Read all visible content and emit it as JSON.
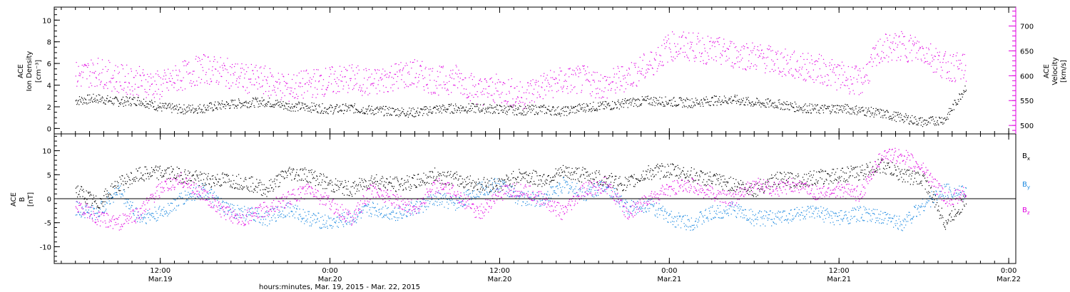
{
  "chart_data": [
    {
      "type": "scatter",
      "panel": "ace-density-velocity",
      "left_axis": {
        "label_lines": [
          "ACE",
          "Ion Density"
        ],
        "units": "[cm⁻³]",
        "ylim": [
          -0.5,
          11.2
        ],
        "ticks": [
          0,
          2,
          4,
          6,
          8,
          10
        ],
        "color": "#000000"
      },
      "right_axis": {
        "label_lines": [
          "ACE",
          "Velocity"
        ],
        "units": "[km/s]",
        "ylim": [
          483,
          738
        ],
        "ticks": [
          500,
          550,
          600,
          650,
          700
        ],
        "color": "#e000e0"
      },
      "series": [
        {
          "name": "",
          "axis": "left",
          "color": "#000000",
          "x": [
            0,
            3,
            6,
            9,
            12,
            15,
            18,
            21,
            24,
            27,
            30,
            33,
            36,
            39,
            42,
            45,
            48,
            51,
            54,
            57,
            60,
            63,
            66,
            69,
            72,
            75,
            78,
            81,
            84,
            87,
            90,
            93,
            96,
            99,
            102,
            105,
            108,
            111,
            114,
            117,
            120,
            123,
            126
          ],
          "values": [
            2.6,
            2.8,
            2.5,
            2.6,
            2.0,
            1.8,
            1.9,
            2.2,
            2.4,
            2.5,
            2.1,
            2.0,
            1.8,
            1.9,
            1.7,
            1.6,
            1.5,
            1.8,
            1.9,
            1.9,
            1.8,
            1.7,
            1.8,
            1.6,
            2.0,
            2.1,
            2.4,
            2.6,
            2.5,
            2.4,
            2.6,
            2.7,
            2.4,
            2.3,
            2.0,
            1.8,
            1.9,
            1.7,
            1.4,
            1.0,
            0.6,
            0.9,
            4.0
          ]
        },
        {
          "name": "",
          "axis": "right",
          "color": "#e000e0",
          "x": [
            0,
            3,
            6,
            9,
            12,
            15,
            18,
            21,
            24,
            27,
            30,
            33,
            36,
            39,
            42,
            45,
            48,
            51,
            54,
            57,
            60,
            63,
            66,
            69,
            72,
            75,
            78,
            81,
            84,
            87,
            90,
            93,
            96,
            99,
            102,
            105,
            108,
            111,
            114,
            117,
            120,
            123,
            126
          ],
          "values": [
            600,
            610,
            595,
            590,
            580,
            600,
            615,
            608,
            595,
            590,
            575,
            585,
            590,
            595,
            585,
            600,
            605,
            590,
            595,
            570,
            575,
            560,
            580,
            590,
            592,
            580,
            600,
            620,
            660,
            660,
            650,
            645,
            640,
            630,
            620,
            615,
            600,
            588,
            655,
            660,
            650,
            620,
            615
          ]
        }
      ]
    },
    {
      "type": "scatter",
      "panel": "ace-b-components",
      "left_axis": {
        "label_lines": [
          "ACE",
          "B"
        ],
        "units": "[nT]",
        "ylim": [
          -13.5,
          13.5
        ],
        "ticks": [
          -10,
          -5,
          0,
          5,
          10
        ],
        "color": "#000000"
      },
      "zero_line": true,
      "legend": {
        "placement": "right",
        "entries": [
          {
            "label": "B",
            "sub": "x",
            "color": "#000000"
          },
          {
            "label": "B",
            "sub": "y",
            "color": "#1a88e0"
          },
          {
            "label": "B",
            "sub": "z",
            "color": "#e000e0"
          }
        ]
      },
      "series": [
        {
          "name": "Bx",
          "color": "#000000",
          "x": [
            0,
            3,
            6,
            9,
            12,
            15,
            18,
            21,
            24,
            27,
            30,
            33,
            36,
            39,
            42,
            45,
            48,
            51,
            54,
            57,
            60,
            63,
            66,
            69,
            72,
            75,
            78,
            81,
            84,
            87,
            90,
            93,
            96,
            99,
            102,
            105,
            108,
            111,
            114,
            117,
            120,
            123,
            126
          ],
          "values": [
            2,
            -1,
            3,
            5,
            5.5,
            5,
            4,
            4,
            3.5,
            2,
            5.5,
            5,
            3,
            2,
            4,
            3,
            3.5,
            5,
            4,
            3,
            3,
            5,
            4,
            5.5,
            5,
            4,
            3,
            5.5,
            6,
            5,
            4,
            3,
            2,
            4,
            4,
            4.5,
            5,
            5.5,
            7,
            5,
            4,
            -5,
            0
          ]
        },
        {
          "name": "By",
          "color": "#1a88e0",
          "x": [
            0,
            3,
            6,
            9,
            12,
            15,
            18,
            21,
            24,
            27,
            30,
            33,
            36,
            39,
            42,
            45,
            48,
            51,
            54,
            57,
            60,
            63,
            66,
            69,
            72,
            75,
            78,
            81,
            84,
            87,
            90,
            93,
            96,
            99,
            102,
            105,
            108,
            111,
            114,
            117,
            120,
            123,
            126
          ],
          "values": [
            -2,
            -3,
            2,
            -4,
            -3,
            0,
            2,
            -2,
            -3,
            -4,
            -2,
            -4,
            -5,
            -4,
            -2,
            -3,
            -2,
            0,
            -1,
            2,
            3,
            0,
            0,
            3,
            1,
            3,
            -2,
            -1,
            -4,
            -5,
            -3,
            -2,
            -4,
            -4,
            -3,
            -3,
            -4,
            -3,
            -4,
            -5,
            -1,
            2,
            1
          ]
        },
        {
          "name": "Bz",
          "color": "#e000e0",
          "x": [
            0,
            3,
            6,
            9,
            12,
            15,
            18,
            21,
            24,
            27,
            30,
            33,
            36,
            39,
            42,
            45,
            48,
            51,
            54,
            57,
            60,
            63,
            66,
            69,
            72,
            75,
            78,
            81,
            84,
            87,
            90,
            93,
            96,
            99,
            102,
            105,
            108,
            111,
            114,
            117,
            120,
            123,
            126
          ],
          "values": [
            -1,
            -4,
            -5,
            -3,
            2,
            4,
            1,
            -3,
            -4,
            -2,
            0,
            2,
            -1,
            -4,
            2,
            0,
            -2,
            3,
            1,
            -3,
            1,
            2,
            0,
            -3,
            2,
            3,
            -3,
            0,
            2,
            3,
            1,
            0,
            3,
            2,
            3,
            1,
            2,
            1,
            9,
            9,
            6,
            0,
            1
          ]
        }
      ]
    }
  ],
  "x_axis": {
    "ticks": [
      {
        "time": "12:00",
        "date": "Mar.19"
      },
      {
        "time": "0:00",
        "date": "Mar.20"
      },
      {
        "time": "12:00",
        "date": "Mar.20"
      },
      {
        "time": "0:00",
        "date": "Mar.21"
      },
      {
        "time": "12:00",
        "date": "Mar.21"
      },
      {
        "time": "0:00",
        "date": "Mar.22"
      }
    ],
    "title": "hours:minutes, Mar. 19, 2015 - Mar. 22, 2015"
  }
}
